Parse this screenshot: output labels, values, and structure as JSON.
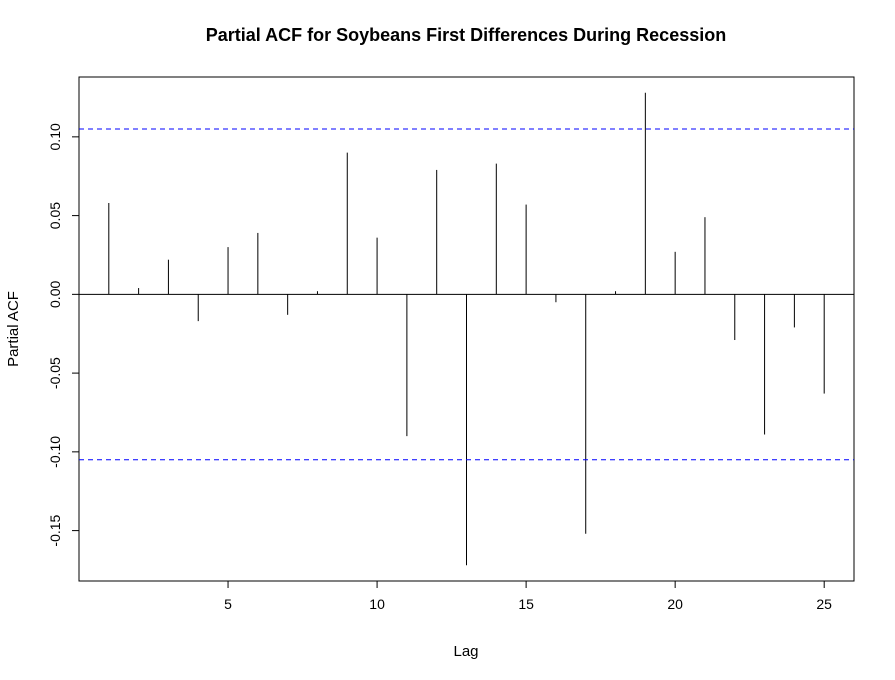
{
  "chart_data": {
    "type": "bar",
    "title": "Partial ACF for Soybeans First Differences During Recession",
    "xlabel": "Lag",
    "ylabel": "Partial ACF",
    "x": [
      1,
      2,
      3,
      4,
      5,
      6,
      7,
      8,
      9,
      10,
      11,
      12,
      13,
      14,
      15,
      16,
      17,
      18,
      19,
      20,
      21,
      22,
      23,
      24,
      25
    ],
    "values": [
      0.058,
      0.004,
      0.022,
      -0.017,
      0.03,
      0.039,
      -0.013,
      0.002,
      0.09,
      0.036,
      -0.09,
      0.079,
      -0.172,
      0.083,
      0.057,
      -0.005,
      -0.152,
      0.002,
      0.128,
      0.027,
      0.049,
      -0.029,
      -0.089,
      -0.021,
      -0.063
    ],
    "confidence_bound": 0.105,
    "xlim": [
      0,
      26
    ],
    "ylim": [
      -0.182,
      0.138
    ],
    "xticks": [
      5,
      10,
      15,
      20,
      25
    ],
    "yticks": [
      -0.15,
      -0.1,
      -0.05,
      0.0,
      0.05,
      0.1
    ],
    "ytick_labels": [
      "-0.15",
      "-0.10",
      "-0.05",
      "0.00",
      "0.05",
      "0.10"
    ],
    "grid": false,
    "colors": {
      "bars": "#000000",
      "bounds": "#0000ff"
    }
  }
}
